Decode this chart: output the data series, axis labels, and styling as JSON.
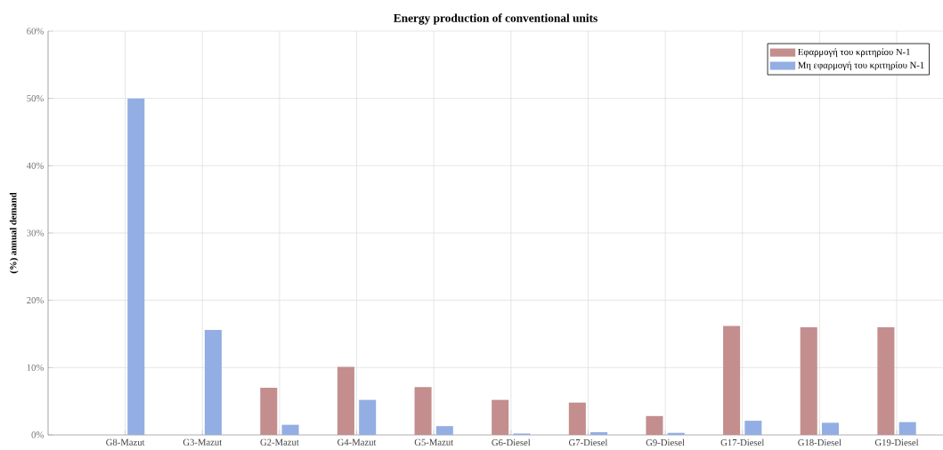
{
  "chart_data": {
    "type": "bar",
    "title": "Energy production of conventional units",
    "ylabel": "(%) annual demand",
    "categories": [
      "G8-Mazut",
      "G3-Mazut",
      "G2-Mazut",
      "G4-Mazut",
      "G5-Mazut",
      "G6-Diesel",
      "G7-Diesel",
      "G9-Diesel",
      "G17-Diesel",
      "G18-Diesel",
      "G19-Diesel"
    ],
    "series": [
      {
        "name": "Εφαρμογή του κριτηρίου N-1",
        "color": "#c48e8e",
        "values": [
          0,
          0,
          7.0,
          10.1,
          7.1,
          5.2,
          4.8,
          2.8,
          16.2,
          16.0,
          16.0
        ]
      },
      {
        "name": "Μη εφαρμογή του κριτηρίου N-1",
        "color": "#93aee3",
        "values": [
          50.0,
          15.6,
          1.5,
          5.2,
          1.3,
          0.2,
          0.4,
          0.3,
          2.1,
          1.8,
          1.9
        ]
      }
    ],
    "ylim": [
      0,
      60
    ],
    "yticks": [
      {
        "value": 0,
        "label": "0%"
      },
      {
        "value": 10,
        "label": "10%"
      },
      {
        "value": 20,
        "label": "20%"
      },
      {
        "value": 30,
        "label": "30%"
      },
      {
        "value": 40,
        "label": "40%"
      },
      {
        "value": 50,
        "label": "50%"
      },
      {
        "value": 60,
        "label": "60%"
      }
    ],
    "grid": true,
    "legend": "top right"
  }
}
